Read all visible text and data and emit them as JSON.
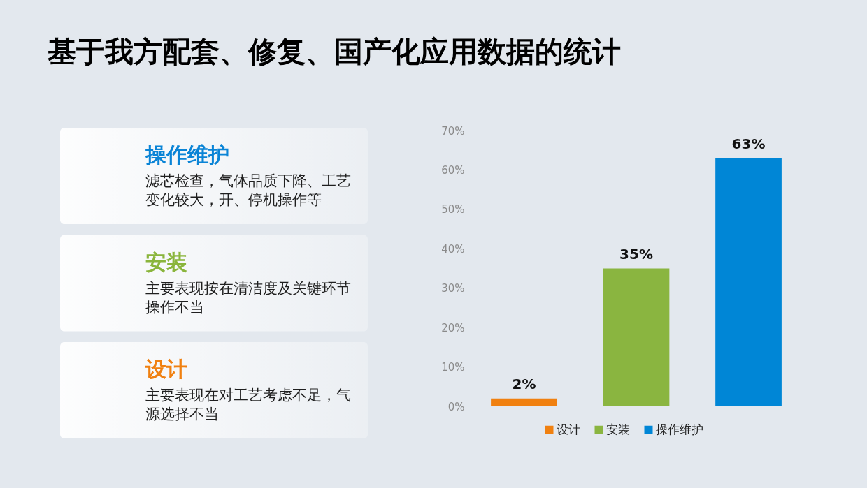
{
  "chart_data": [
    {
      "type": "other",
      "title": "基于我方配套、修复、国产化应用数据的统计",
      "categories": [
        "操作维护",
        "安装",
        "设计"
      ],
      "colors": [
        "#0a84d6",
        "#8ab53c",
        "#f08010"
      ],
      "annotations": [
        "滤芯检查，气体品质下降、工艺变化较大，开、停机操作等",
        "主要表现按在清洁度及关键环节操作不当",
        "主要表现在对工艺考虑不足，气源选择不当"
      ]
    },
    {
      "type": "bar",
      "categories": [
        null,
        null,
        null
      ],
      "stacked": true,
      "series": [
        {
          "name": "设计",
          "color": "#f08010",
          "values": [
            2,
            null,
            null
          ],
          "value_labels": [
            "2%",
            null,
            null
          ]
        },
        {
          "name": "安装",
          "color": "#8ab540",
          "values": [
            null,
            35,
            null
          ],
          "value_labels": [
            null,
            "35%",
            null
          ]
        },
        {
          "name": "操作维护",
          "color": "#0086d6",
          "values": [
            null,
            null,
            63
          ],
          "value_labels": [
            null,
            null,
            "63%"
          ]
        }
      ],
      "ylim": [
        0,
        70
      ],
      "yticks": [
        {
          "value": 0,
          "label": "0%"
        },
        {
          "value": 10,
          "label": "10%"
        },
        {
          "value": 20,
          "label": "20%"
        },
        {
          "value": 30,
          "label": "30%"
        },
        {
          "value": 40,
          "label": "40%"
        },
        {
          "value": 50,
          "label": "50%"
        },
        {
          "value": 60,
          "label": "60%"
        },
        {
          "value": 70,
          "label": "70%"
        }
      ],
      "tick_labels": "y",
      "legend": "bottom",
      "grid": false
    }
  ]
}
